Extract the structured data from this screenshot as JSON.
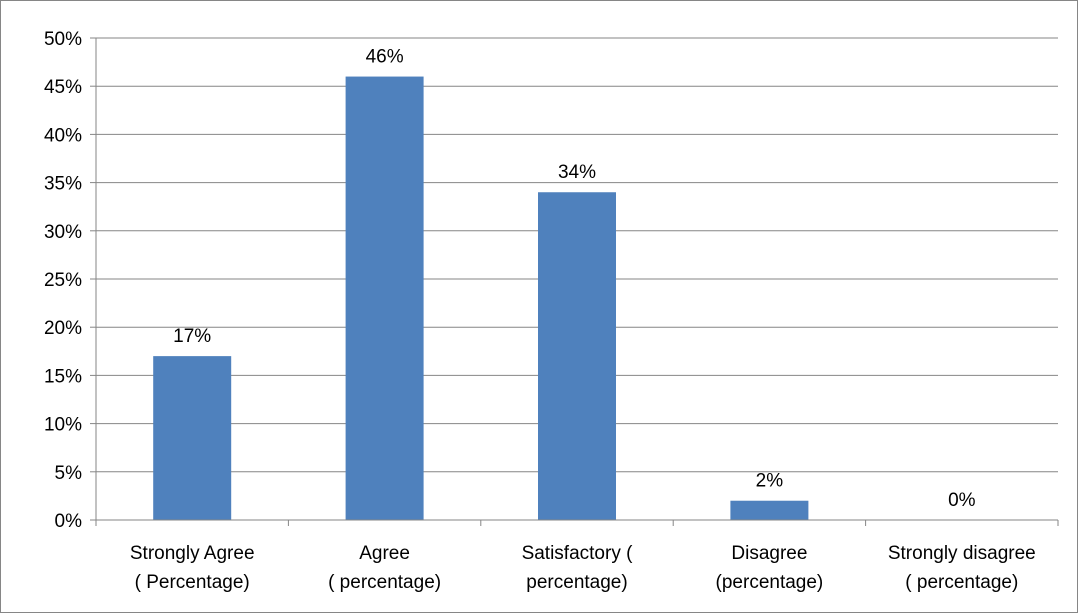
{
  "chart_data": {
    "type": "bar",
    "categories": [
      [
        "Strongly Agree",
        "( Percentage)"
      ],
      [
        "Agree",
        "( percentage)"
      ],
      [
        "Satisfactory (",
        "percentage)"
      ],
      [
        "Disagree",
        "(percentage)"
      ],
      [
        "Strongly disagree",
        "( percentage)"
      ]
    ],
    "values": [
      17,
      46,
      34,
      2,
      0
    ],
    "data_labels": [
      "17%",
      "46%",
      "34%",
      "2%",
      "0%"
    ],
    "y_ticks": [
      "0%",
      "5%",
      "10%",
      "15%",
      "20%",
      "25%",
      "30%",
      "35%",
      "40%",
      "45%",
      "50%"
    ],
    "ylim": [
      0,
      50
    ],
    "y_step": 5,
    "grid": true,
    "legend": "none",
    "title": "",
    "xlabel": "",
    "ylabel": "",
    "colors": {
      "bar": "#4f81bd",
      "grid": "#868686",
      "axis": "#868686"
    }
  }
}
